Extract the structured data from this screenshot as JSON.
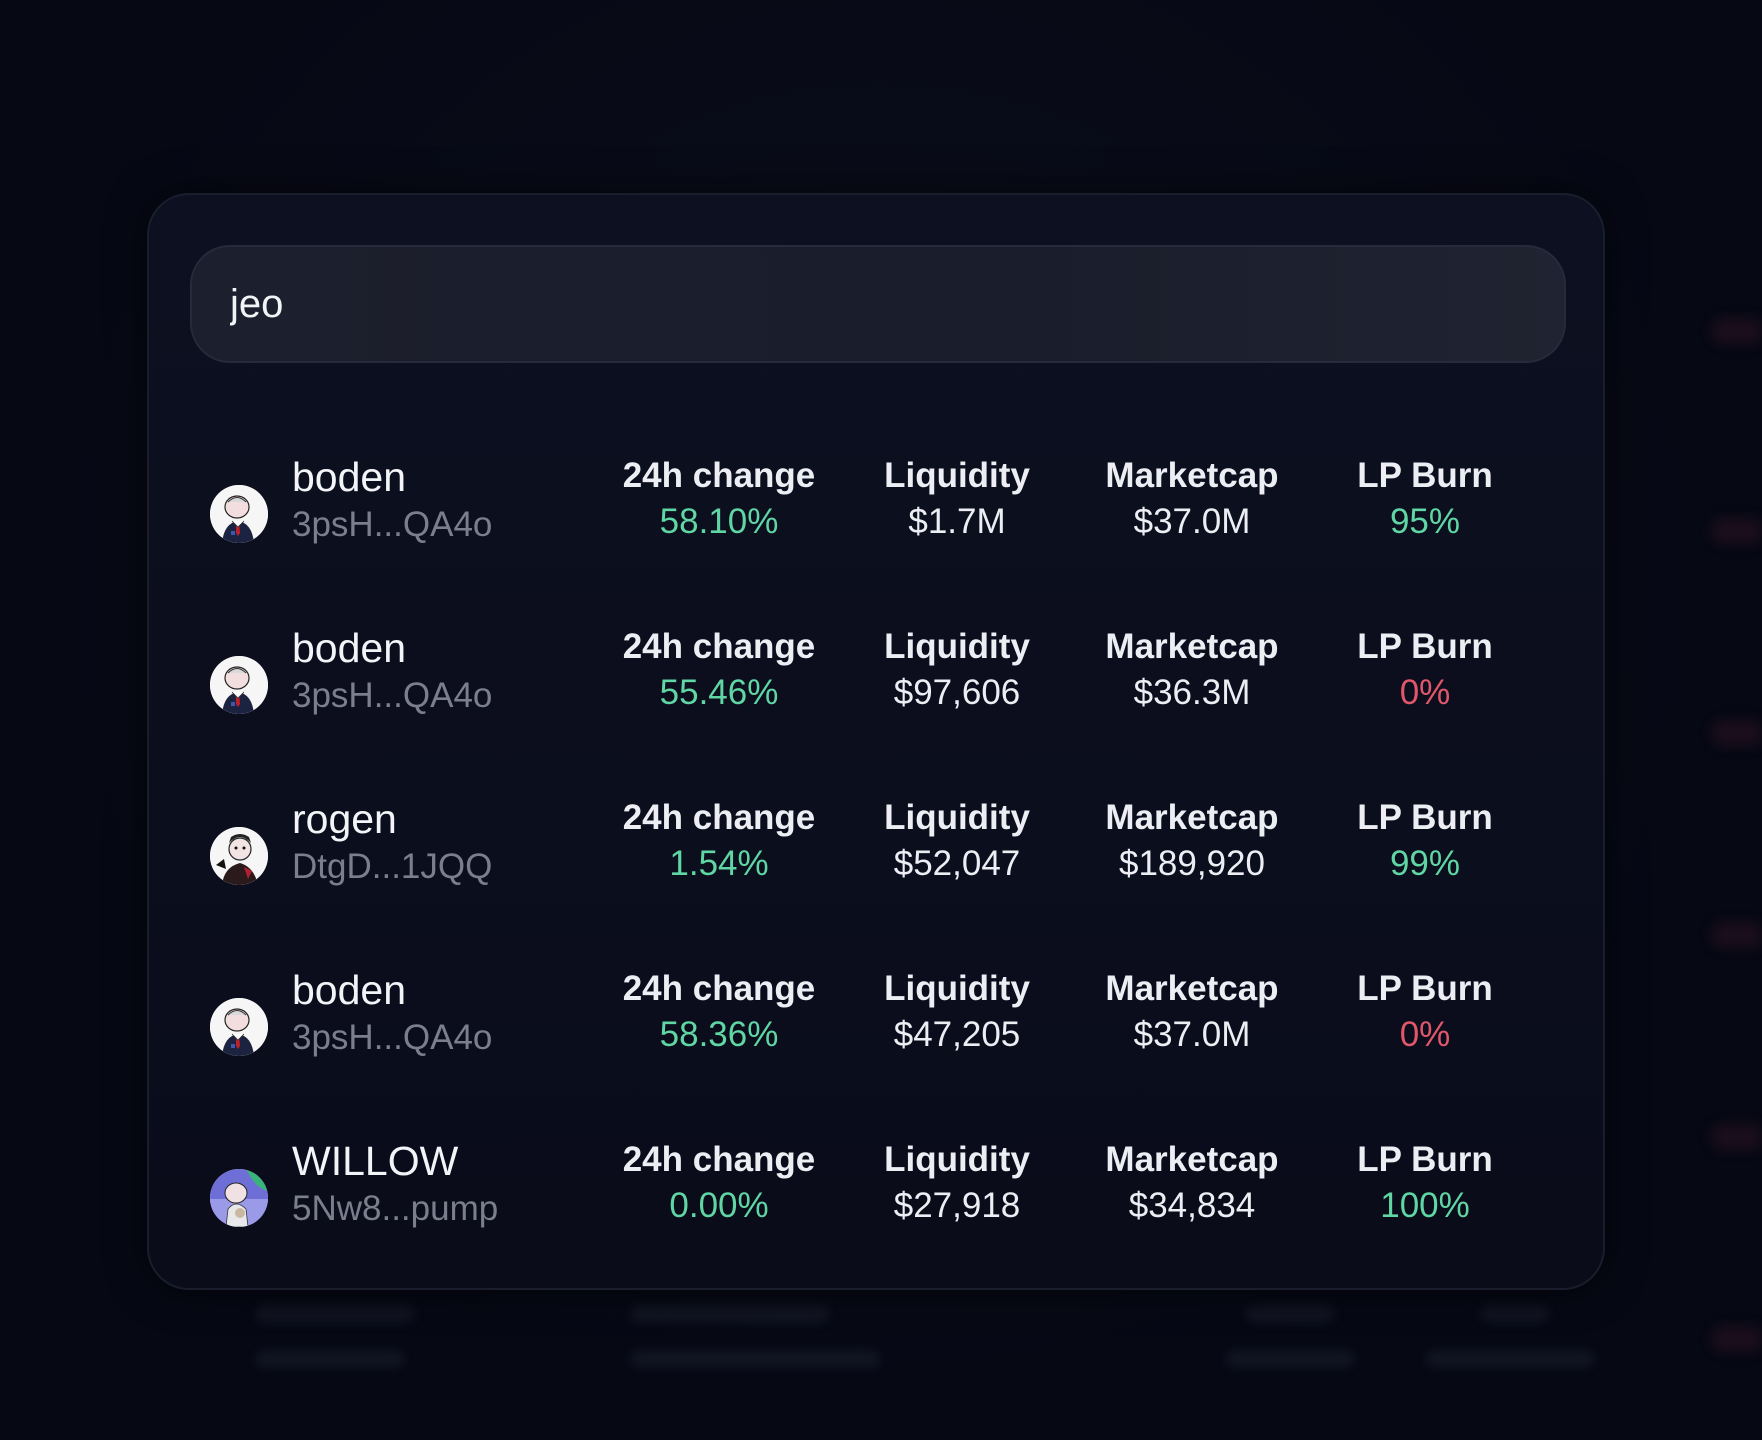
{
  "search": {
    "value": "jeo",
    "placeholder": ""
  },
  "labels": {
    "change": "24h change",
    "liquidity": "Liquidity",
    "marketcap": "Marketcap",
    "lp_burn": "LP Burn"
  },
  "colors": {
    "positive": "#5fd6a4",
    "negative": "#e0566b",
    "background": "#060814",
    "panel": "#0b0d1b"
  },
  "results": [
    {
      "name": "boden",
      "address": "3psH...QA4o",
      "avatar_icon": "boden-avatar-icon",
      "change": "58.10%",
      "change_status": "positive",
      "liquidity": "$1.7M",
      "marketcap": "$37.0M",
      "lp_burn": "95%",
      "lp_burn_status": "positive"
    },
    {
      "name": "boden",
      "address": "3psH...QA4o",
      "avatar_icon": "boden-avatar-icon",
      "change": "55.46%",
      "change_status": "positive",
      "liquidity": "$97,606",
      "marketcap": "$36.3M",
      "lp_burn": "0%",
      "lp_burn_status": "negative"
    },
    {
      "name": "rogen",
      "address": "DtgD...1JQQ",
      "avatar_icon": "rogen-avatar-icon",
      "change": "1.54%",
      "change_status": "positive",
      "liquidity": "$52,047",
      "marketcap": "$189,920",
      "lp_burn": "99%",
      "lp_burn_status": "positive"
    },
    {
      "name": "boden",
      "address": "3psH...QA4o",
      "avatar_icon": "boden-avatar-icon",
      "change": "58.36%",
      "change_status": "positive",
      "liquidity": "$47,205",
      "marketcap": "$37.0M",
      "lp_burn": "0%",
      "lp_burn_status": "negative"
    },
    {
      "name": "WILLOW",
      "address": "5Nw8...pump",
      "avatar_icon": "willow-avatar-icon",
      "change": "0.00%",
      "change_status": "positive",
      "liquidity": "$27,918",
      "marketcap": "$34,834",
      "lp_burn": "100%",
      "lp_burn_status": "positive"
    }
  ]
}
